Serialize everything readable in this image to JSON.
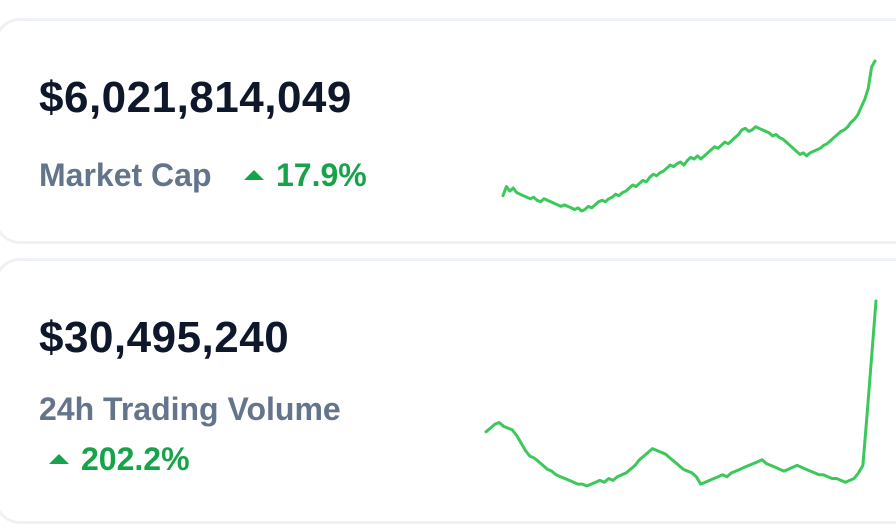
{
  "stats": [
    {
      "value": "$6,021,814,049",
      "label": "Market Cap",
      "change": "17.9%",
      "direction": "up",
      "sparkline": [
        12,
        18,
        15,
        17,
        14,
        13,
        12,
        11,
        10,
        11,
        9,
        8,
        10,
        9,
        8,
        7,
        6,
        5,
        6,
        5,
        4,
        3,
        4,
        2,
        3,
        5,
        4,
        6,
        8,
        9,
        8,
        10,
        11,
        13,
        12,
        14,
        15,
        17,
        19,
        18,
        20,
        22,
        21,
        24,
        26,
        25,
        27,
        28,
        30,
        32,
        31,
        33,
        34,
        32,
        35,
        37,
        36,
        38,
        36,
        38,
        40,
        42,
        44,
        43,
        45,
        47,
        46,
        48,
        50,
        52,
        55,
        56,
        54,
        55,
        57,
        56,
        55,
        54,
        53,
        51,
        52,
        50,
        49,
        47,
        45,
        43,
        41,
        39,
        40,
        38,
        40,
        41,
        42,
        43,
        45,
        46,
        48,
        50,
        52,
        54,
        55,
        57,
        60,
        62,
        65,
        70,
        75,
        82,
        96,
        100
      ],
      "color": "#3cc85a"
    },
    {
      "value": "$30,495,240",
      "label": "24h Trading Volume",
      "change": "202.2%",
      "direction": "up",
      "sparkline": [
        30,
        32,
        34,
        35,
        33,
        32,
        31,
        28,
        24,
        20,
        17,
        16,
        14,
        12,
        10,
        9,
        7,
        6,
        5,
        4,
        3,
        2,
        2,
        1,
        2,
        3,
        4,
        3,
        5,
        4,
        6,
        7,
        8,
        10,
        12,
        15,
        17,
        19,
        21,
        20,
        19,
        18,
        16,
        14,
        12,
        10,
        9,
        8,
        6,
        2,
        3,
        4,
        5,
        6,
        7,
        6,
        8,
        9,
        10,
        11,
        12,
        13,
        14,
        15,
        13,
        12,
        11,
        10,
        9,
        10,
        11,
        12,
        11,
        10,
        9,
        8,
        7,
        7,
        6,
        5,
        5,
        4,
        3,
        4,
        5,
        8,
        12,
        40,
        70,
        100
      ],
      "color": "#3cc85a"
    }
  ],
  "colors": {
    "up": "#16a34a",
    "spark": "#3cc85a"
  }
}
